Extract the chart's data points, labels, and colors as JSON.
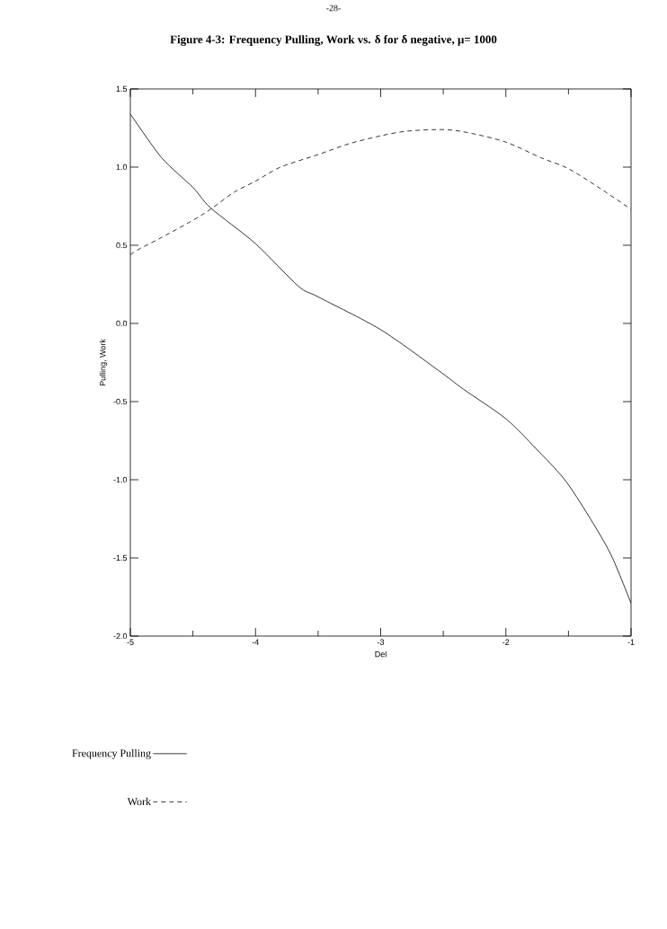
{
  "chart_data": {
    "type": "line",
    "title": "Figure 4-3: Frequency Pulling, Work vs. δ for δ negative, μ= 1000",
    "annotations": [
      "-28-"
    ],
    "xlabel": "Del",
    "ylabel": "Pulling, Work",
    "xlim": [
      -5,
      -1
    ],
    "ylim": [
      -2.0,
      1.5
    ],
    "xticks": [
      -5,
      -4,
      -3,
      -2,
      -1
    ],
    "yticks": [
      {
        "value": -2.0,
        "label": "-2.0"
      },
      {
        "value": -1.5,
        "label": "-1.5"
      },
      {
        "value": -1.0,
        "label": "-1.0"
      },
      {
        "value": -0.5,
        "label": "-0.5"
      },
      {
        "value": 0.0,
        "label": "0.0"
      },
      {
        "value": 0.5,
        "label": "0.5"
      },
      {
        "value": 1.0,
        "label": "1.0"
      },
      {
        "value": 1.5,
        "label": "1.5"
      }
    ],
    "legend": "bottom",
    "grid": false,
    "series": [
      {
        "name": "Frequency Pulling",
        "color": "#000000",
        "line_style": "solid",
        "x": [
          -5,
          -4.75,
          -4.5,
          -4.36,
          -4.0,
          -3.66,
          -3.5,
          -3.0,
          -2.54,
          -2.34,
          -2.0,
          -1.76,
          -1.53,
          -1.34,
          -1.16,
          -1.0
        ],
        "values": [
          1.34,
          1.06,
          0.87,
          0.74,
          0.51,
          0.24,
          0.17,
          -0.04,
          -0.3,
          -0.42,
          -0.61,
          -0.8,
          -1.0,
          -1.23,
          -1.48,
          -1.79
        ]
      },
      {
        "name": "Work",
        "color": "#000000",
        "line_style": "dashed",
        "x": [
          -5,
          -4.92,
          -4.75,
          -4.5,
          -4.36,
          -4.17,
          -4.0,
          -3.8,
          -3.5,
          -3.25,
          -3.0,
          -2.79,
          -2.5,
          -2.3,
          -2.0,
          -1.72,
          -1.5,
          -1.24,
          -1.0
        ],
        "values": [
          0.44,
          0.48,
          0.55,
          0.66,
          0.73,
          0.84,
          0.91,
          1.0,
          1.08,
          1.15,
          1.2,
          1.23,
          1.24,
          1.22,
          1.16,
          1.06,
          0.99,
          0.86,
          0.73
        ]
      }
    ]
  }
}
